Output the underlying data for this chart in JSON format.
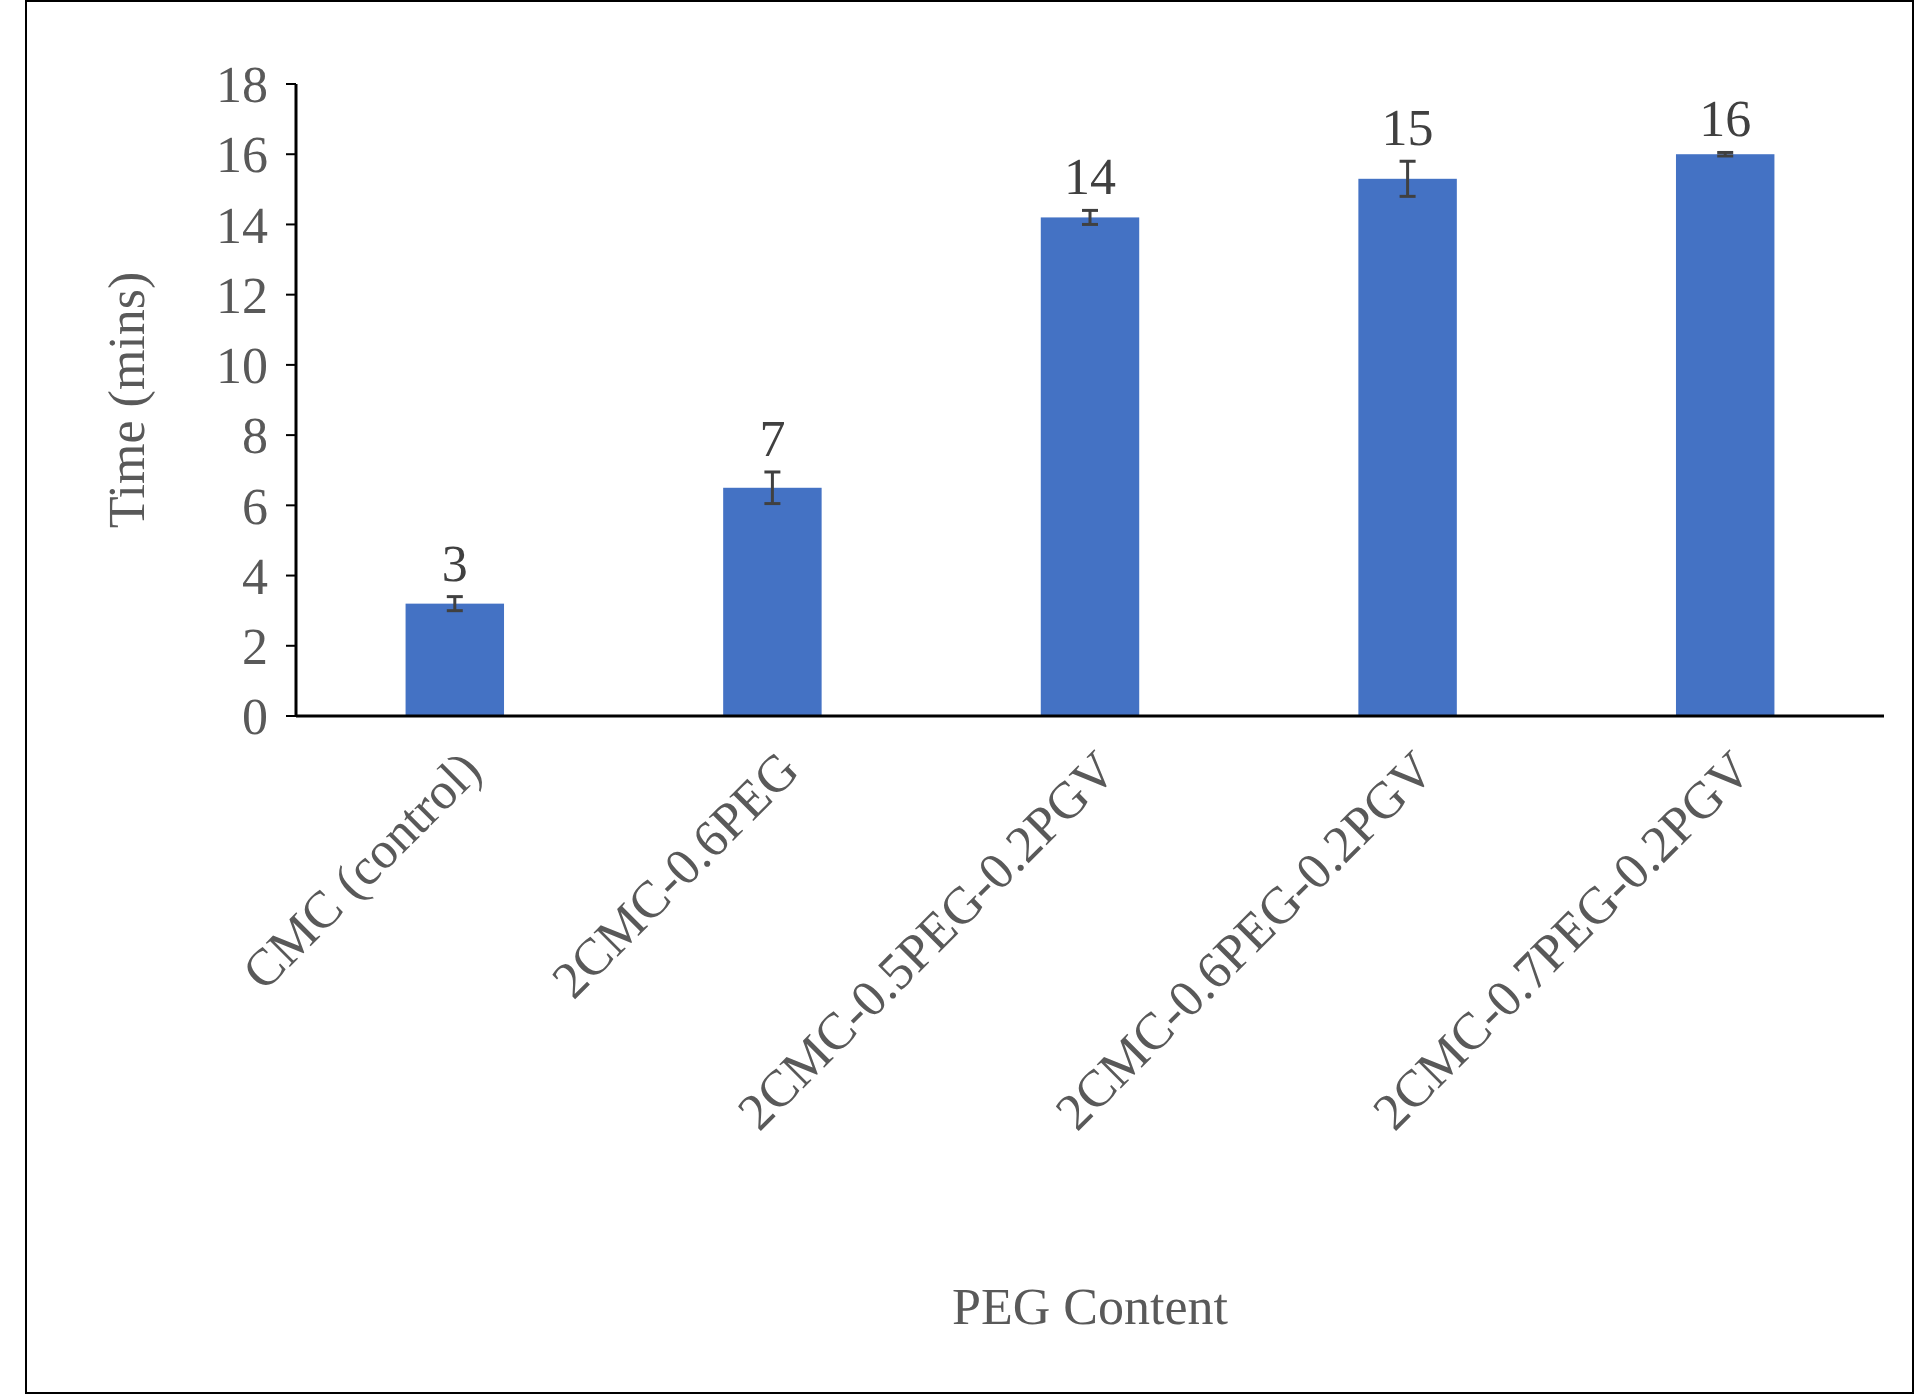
{
  "chart_data": {
    "type": "bar",
    "xlabel": "PEG Content",
    "ylabel": "Time (mins)",
    "categories": [
      "CMC (control)",
      "2CMC-0.6PEG",
      "2CMC-0.5PEG-0.2PGV",
      "2CMC-0.6PEG-0.2PGV",
      "2CMC-0.7PEG-0.2PGV"
    ],
    "values": [
      3.2,
      6.5,
      14.2,
      15.3,
      16.0
    ],
    "errors": [
      0.2,
      0.45,
      0.2,
      0.5,
      0.05
    ],
    "value_labels": [
      "3",
      "7",
      "14",
      "15",
      "16"
    ],
    "color": "#4472c4",
    "ylim": [
      0,
      18
    ],
    "yticks": [
      0,
      2,
      4,
      6,
      8,
      10,
      12,
      14,
      16,
      18
    ],
    "grid": false
  }
}
